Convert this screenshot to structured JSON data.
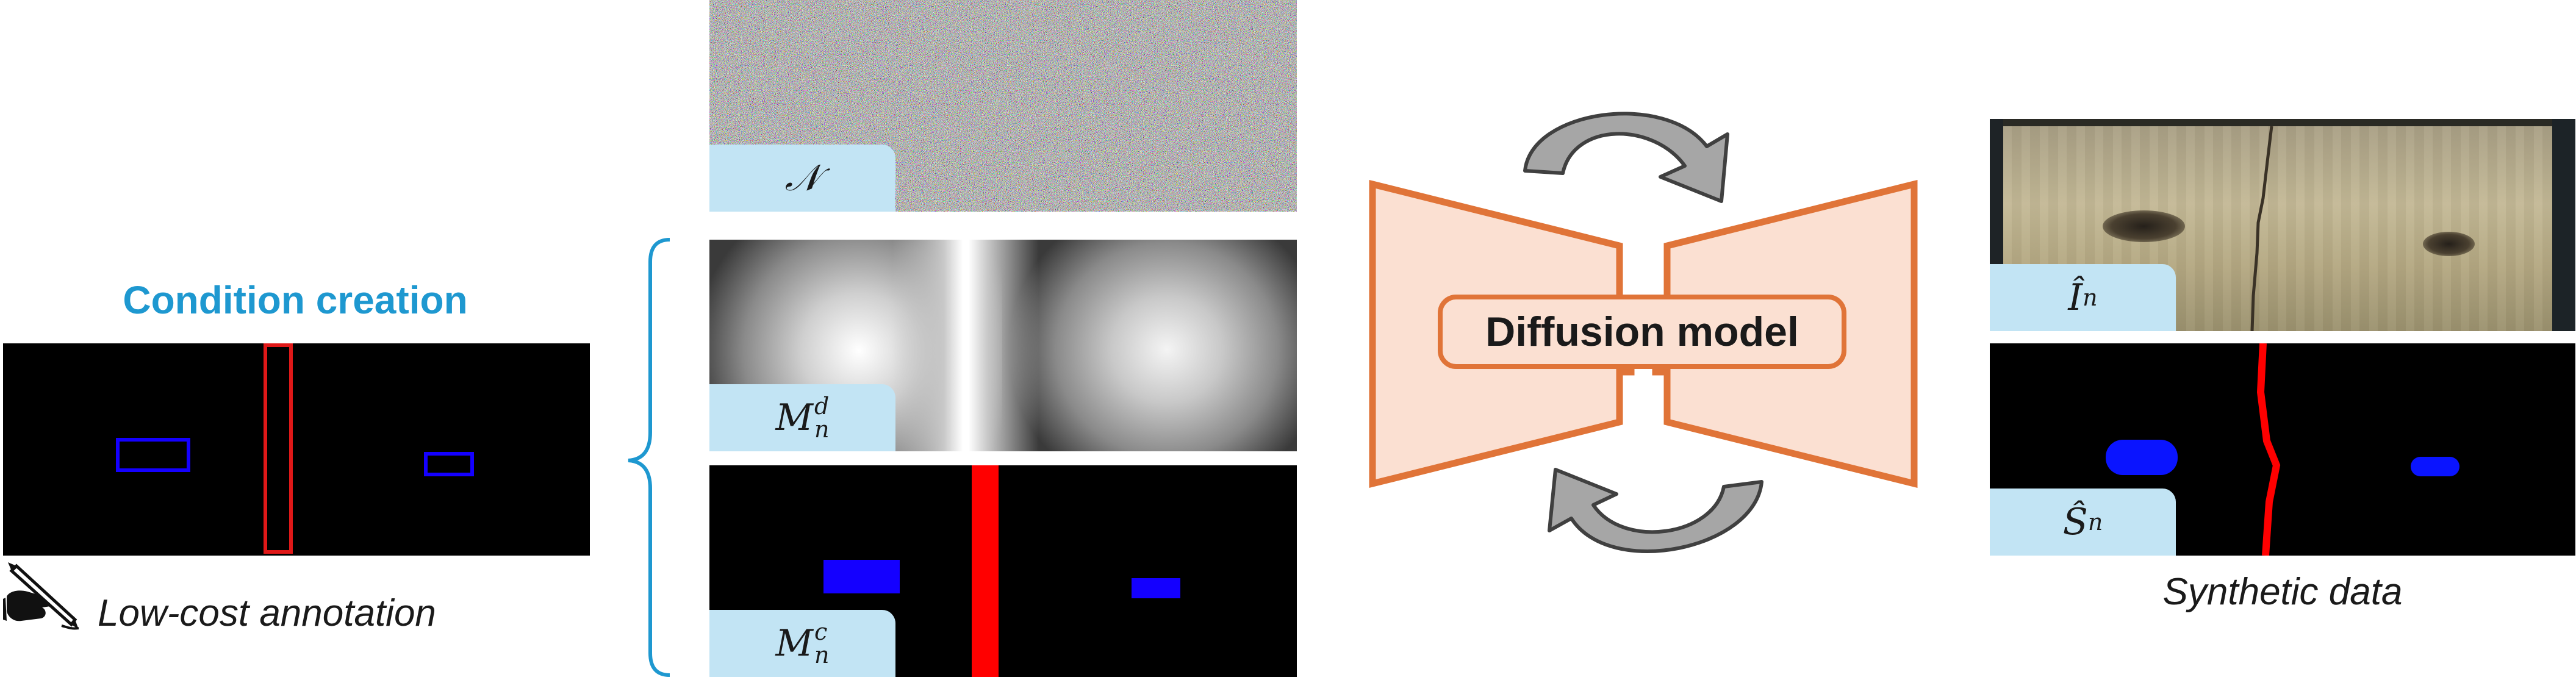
{
  "condition_section": {
    "heading": "Condition creation",
    "caption": "Low-cost annotation",
    "icon": "hand-writing-icon"
  },
  "inputs": {
    "noise_label": "𝒩",
    "distance_map_label": {
      "base": "M",
      "sub": "n",
      "sup": "d"
    },
    "class_map_label": {
      "base": "M",
      "sub": "n",
      "sup": "c"
    }
  },
  "model": {
    "label": "Diffusion model",
    "arrow_icon": "cycle-arrow-icon"
  },
  "output": {
    "image_label": {
      "base": "Î",
      "sub": "n"
    },
    "mask_label": {
      "base": "Ŝ",
      "sub": "n"
    },
    "caption": "Synthetic data"
  },
  "colors": {
    "heading": "#1e98d0",
    "bracket": "#1e98d0",
    "label_background": "#c2e4f4",
    "model_fill": "#fbe0d2",
    "model_stroke": "#e07438",
    "crack_class": "#ff0000",
    "knot_class": "#0000ff",
    "arrow_fill": "#a6a6a6"
  }
}
